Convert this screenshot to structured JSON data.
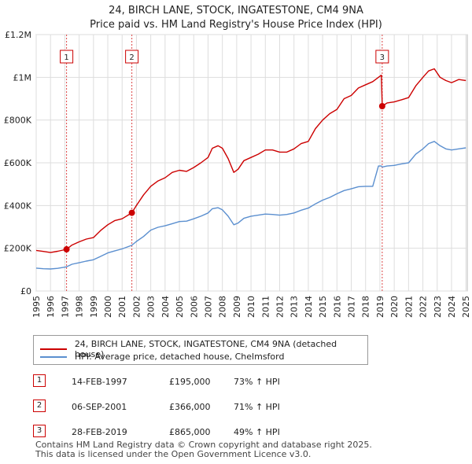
{
  "title_line1": "24, BIRCH LANE, STOCK, INGATESTONE, CM4 9NA",
  "title_line2": "Price paid vs. HM Land Registry's House Price Index (HPI)",
  "chart_data": {
    "type": "line",
    "y_tick_labels": [
      "£0",
      "£200K",
      "£400K",
      "£600K",
      "£800K",
      "£1M",
      "£1.2M"
    ],
    "y_tick_values": [
      0,
      200000,
      400000,
      600000,
      800000,
      1000000,
      1200000
    ],
    "ylim": [
      0,
      1200000
    ],
    "xlim": [
      1995,
      2025.1
    ],
    "x_tick_labels": [
      "1995",
      "1996",
      "1997",
      "1998",
      "1999",
      "2000",
      "2001",
      "2002",
      "2003",
      "2004",
      "2005",
      "2006",
      "2007",
      "2008",
      "2009",
      "2010",
      "2011",
      "2012",
      "2013",
      "2014",
      "2015",
      "2016",
      "2017",
      "2018",
      "2019",
      "2020",
      "2021",
      "2022",
      "2023",
      "2024",
      "2025"
    ],
    "grid": true,
    "legend_position": "bottom",
    "series": [
      {
        "name": "24, BIRCH LANE, STOCK, INGATESTONE, CM4 9NA (detached house)",
        "color": "#cc0000",
        "x": [
          1995.0,
          1995.5,
          1996.0,
          1996.5,
          1997.12,
          1997.5,
          1998.0,
          1998.5,
          1999.0,
          1999.5,
          2000.0,
          2000.5,
          2001.0,
          2001.68,
          2002.0,
          2002.5,
          2003.0,
          2003.5,
          2004.0,
          2004.5,
          2005.0,
          2005.5,
          2006.0,
          2006.5,
          2007.0,
          2007.3,
          2007.7,
          2008.0,
          2008.4,
          2008.8,
          2009.1,
          2009.5,
          2010.0,
          2010.5,
          2011.0,
          2011.5,
          2012.0,
          2012.5,
          2013.0,
          2013.5,
          2014.0,
          2014.5,
          2015.0,
          2015.5,
          2016.0,
          2016.5,
          2017.0,
          2017.5,
          2018.0,
          2018.5,
          2018.9,
          2019.1,
          2019.16,
          2019.5,
          2020.0,
          2020.5,
          2021.0,
          2021.5,
          2022.0,
          2022.4,
          2022.8,
          2023.2,
          2023.6,
          2024.0,
          2024.5,
          2025.0
        ],
        "values": [
          190000,
          185000,
          180000,
          186000,
          195000,
          215000,
          230000,
          243000,
          250000,
          283000,
          310000,
          330000,
          338000,
          366000,
          400000,
          450000,
          490000,
          515000,
          530000,
          555000,
          565000,
          560000,
          578000,
          600000,
          625000,
          668000,
          680000,
          668000,
          620000,
          555000,
          570000,
          610000,
          625000,
          640000,
          660000,
          660000,
          650000,
          650000,
          665000,
          690000,
          700000,
          760000,
          800000,
          830000,
          850000,
          900000,
          915000,
          950000,
          965000,
          980000,
          1000000,
          1010000,
          865000,
          880000,
          885000,
          895000,
          905000,
          960000,
          1000000,
          1030000,
          1040000,
          1000000,
          985000,
          975000,
          990000,
          985000
        ]
      },
      {
        "name": "HPI: Average price, detached house, Chelmsford",
        "color": "#5b8fcf",
        "x": [
          1995.0,
          1995.5,
          1996.0,
          1996.5,
          1997.12,
          1997.5,
          1998.0,
          1998.5,
          1999.0,
          1999.5,
          2000.0,
          2000.5,
          2001.0,
          2001.68,
          2002.0,
          2002.5,
          2003.0,
          2003.5,
          2004.0,
          2004.5,
          2005.0,
          2005.5,
          2006.0,
          2006.5,
          2007.0,
          2007.3,
          2007.7,
          2008.0,
          2008.4,
          2008.8,
          2009.1,
          2009.5,
          2010.0,
          2010.5,
          2011.0,
          2011.5,
          2012.0,
          2012.5,
          2013.0,
          2013.5,
          2014.0,
          2014.5,
          2015.0,
          2015.5,
          2016.0,
          2016.5,
          2017.0,
          2017.5,
          2018.0,
          2018.5,
          2018.9,
          2019.1,
          2019.16,
          2019.5,
          2020.0,
          2020.5,
          2021.0,
          2021.5,
          2022.0,
          2022.4,
          2022.8,
          2023.2,
          2023.6,
          2024.0,
          2024.5,
          2025.0
        ],
        "values": [
          107000,
          104000,
          103000,
          106000,
          113000,
          125000,
          132000,
          140000,
          146000,
          162000,
          178000,
          188000,
          197000,
          214000,
          232000,
          255000,
          285000,
          298000,
          305000,
          315000,
          325000,
          327000,
          338000,
          350000,
          365000,
          385000,
          390000,
          380000,
          350000,
          310000,
          318000,
          340000,
          350000,
          355000,
          360000,
          358000,
          355000,
          358000,
          365000,
          378000,
          388000,
          408000,
          425000,
          438000,
          455000,
          470000,
          478000,
          488000,
          490000,
          490000,
          585000,
          585000,
          580000,
          585000,
          588000,
          595000,
          600000,
          640000,
          665000,
          690000,
          700000,
          680000,
          665000,
          660000,
          665000,
          670000
        ]
      }
    ],
    "sales": [
      {
        "label": "1",
        "x": 1997.12,
        "price": 195000
      },
      {
        "label": "2",
        "x": 2001.68,
        "price": 366000
      },
      {
        "label": "3",
        "x": 2019.16,
        "price": 865000
      }
    ]
  },
  "table": [
    {
      "num": "1",
      "date": "14-FEB-1997",
      "price": "£195,000",
      "hpi": "73% ↑ HPI"
    },
    {
      "num": "2",
      "date": "06-SEP-2001",
      "price": "£366,000",
      "hpi": "71% ↑ HPI"
    },
    {
      "num": "3",
      "date": "28-FEB-2019",
      "price": "£865,000",
      "hpi": "49% ↑ HPI"
    }
  ],
  "footer_line1": "Contains HM Land Registry data © Crown copyright and database right 2025.",
  "footer_line2": "This data is licensed under the Open Government Licence v3.0."
}
